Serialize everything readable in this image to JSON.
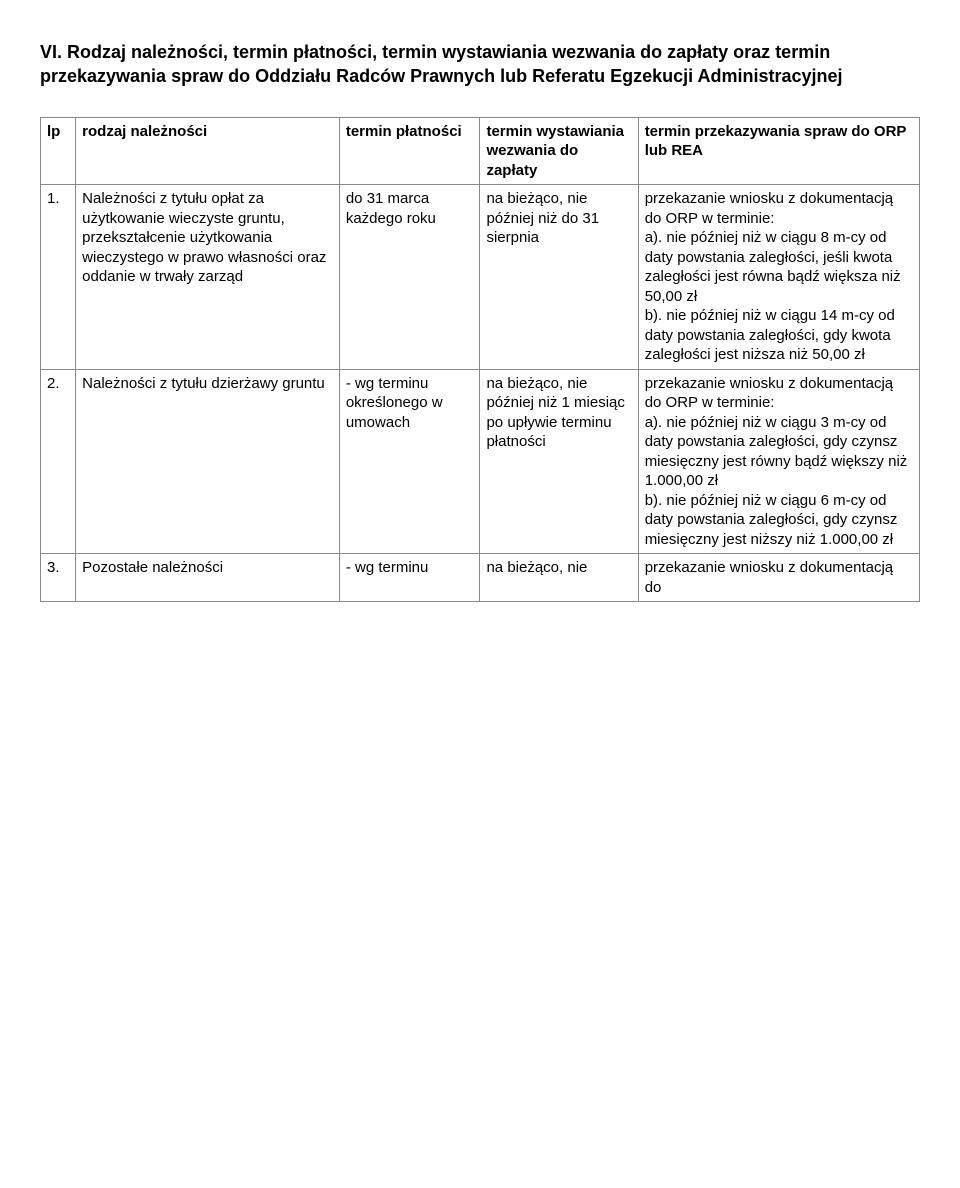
{
  "section_title": "VI. Rodzaj należności, termin płatności, termin wystawiania wezwania do zapłaty oraz termin przekazywania spraw do Oddziału Radców Prawnych lub Referatu Egzekucji Administracyjnej",
  "columns": {
    "c0": "lp",
    "c1": "rodzaj należności",
    "c2": "termin płatności",
    "c3": "termin wystawiania wezwania do zapłaty",
    "c4": "termin przekazywania spraw do ORP lub REA"
  },
  "rows": [
    {
      "lp": "1.",
      "rodzaj": "Należności z tytułu opłat za użytkowanie wieczyste gruntu, przekształcenie użytkowania wieczystego w prawo własności oraz oddanie w trwały zarząd",
      "termin_plat": "do 31 marca każdego roku",
      "termin_wezw": "na bieżąco, nie później niż do 31 sierpnia",
      "termin_przek": "przekazanie wniosku z dokumentacją do ORP w terminie:\na). nie później niż w ciągu 8 m-cy od daty powstania zaległości, jeśli kwota zaległości jest równa bądź większa niż 50,00 zł\nb). nie później niż w ciągu 14 m-cy od daty powstania zaległości, gdy kwota zaległości jest niższa niż 50,00 zł"
    },
    {
      "lp": "2.",
      "rodzaj": "Należności z tytułu dzierżawy gruntu",
      "termin_plat": "- wg terminu określonego w umowach",
      "termin_wezw": "na bieżąco, nie później niż 1 miesiąc po upływie terminu płatności",
      "termin_przek": "przekazanie wniosku z dokumentacją do ORP w terminie:\na). nie później niż w ciągu 3 m-cy od daty powstania zaległości, gdy czynsz miesięczny jest równy bądź większy niż 1.000,00 zł\nb). nie później niż w ciągu 6 m-cy od daty powstania zaległości, gdy czynsz miesięczny jest niższy niż 1.000,00 zł"
    },
    {
      "lp": "3.",
      "rodzaj": "Pozostałe należności",
      "termin_plat": "- wg terminu",
      "termin_wezw": "na bieżąco, nie",
      "termin_przek": "przekazanie wniosku z dokumentacją do"
    }
  ]
}
